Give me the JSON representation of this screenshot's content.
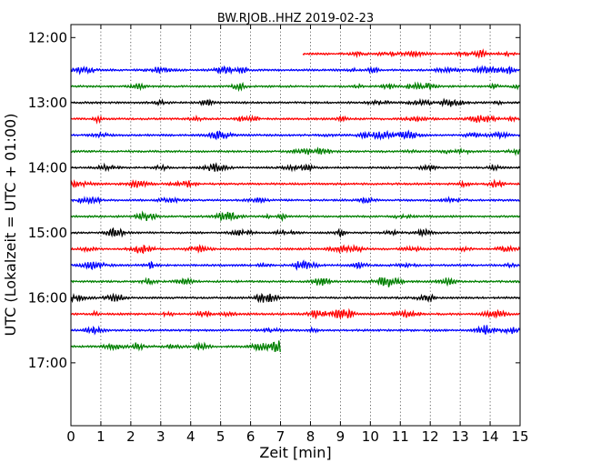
{
  "chart_data": {
    "type": "line",
    "title": "BW.RJOB..HHZ 2019-02-23",
    "xlabel": "Zeit  [min]",
    "ylabel": "UTC (Lokalzeit = UTC + 01:00)",
    "xlim": [
      0,
      15
    ],
    "ylim": [
      "11:48",
      "17:58"
    ],
    "x_ticks": [
      "0",
      "1",
      "2",
      "3",
      "4",
      "5",
      "6",
      "7",
      "8",
      "9",
      "10",
      "11",
      "12",
      "13",
      "14",
      "15"
    ],
    "y_ticks": [
      "12:00",
      "13:00",
      "14:00",
      "15:00",
      "16:00",
      "17:00"
    ],
    "grid": "vertical dotted",
    "color_cycle": [
      "#ff0000",
      "#0000ff",
      "#008000",
      "#000000"
    ],
    "trace_interval_min": 15,
    "traces": [
      {
        "start": "12:15",
        "x_start": 7.75,
        "x_end": 15,
        "color": "#ff0000"
      },
      {
        "start": "12:30",
        "x_start": 0,
        "x_end": 15,
        "color": "#0000ff"
      },
      {
        "start": "12:45",
        "x_start": 0,
        "x_end": 15,
        "color": "#008000"
      },
      {
        "start": "13:00",
        "x_start": 0,
        "x_end": 15,
        "color": "#000000"
      },
      {
        "start": "13:15",
        "x_start": 0,
        "x_end": 15,
        "color": "#ff0000"
      },
      {
        "start": "13:30",
        "x_start": 0,
        "x_end": 15,
        "color": "#0000ff"
      },
      {
        "start": "13:45",
        "x_start": 0,
        "x_end": 15,
        "color": "#008000"
      },
      {
        "start": "14:00",
        "x_start": 0,
        "x_end": 15,
        "color": "#000000"
      },
      {
        "start": "14:15",
        "x_start": 0,
        "x_end": 15,
        "color": "#ff0000"
      },
      {
        "start": "14:30",
        "x_start": 0,
        "x_end": 15,
        "color": "#0000ff"
      },
      {
        "start": "14:45",
        "x_start": 0,
        "x_end": 15,
        "color": "#008000"
      },
      {
        "start": "15:00",
        "x_start": 0,
        "x_end": 15,
        "color": "#000000"
      },
      {
        "start": "15:15",
        "x_start": 0,
        "x_end": 15,
        "color": "#ff0000"
      },
      {
        "start": "15:30",
        "x_start": 0,
        "x_end": 15,
        "color": "#0000ff"
      },
      {
        "start": "15:45",
        "x_start": 0,
        "x_end": 15,
        "color": "#008000"
      },
      {
        "start": "16:00",
        "x_start": 0,
        "x_end": 15,
        "color": "#000000"
      },
      {
        "start": "16:15",
        "x_start": 0,
        "x_end": 15,
        "color": "#ff0000"
      },
      {
        "start": "16:30",
        "x_start": 0,
        "x_end": 15,
        "color": "#0000ff"
      },
      {
        "start": "16:45",
        "x_start": 0,
        "x_end": 7.0,
        "color": "#008000"
      }
    ]
  }
}
